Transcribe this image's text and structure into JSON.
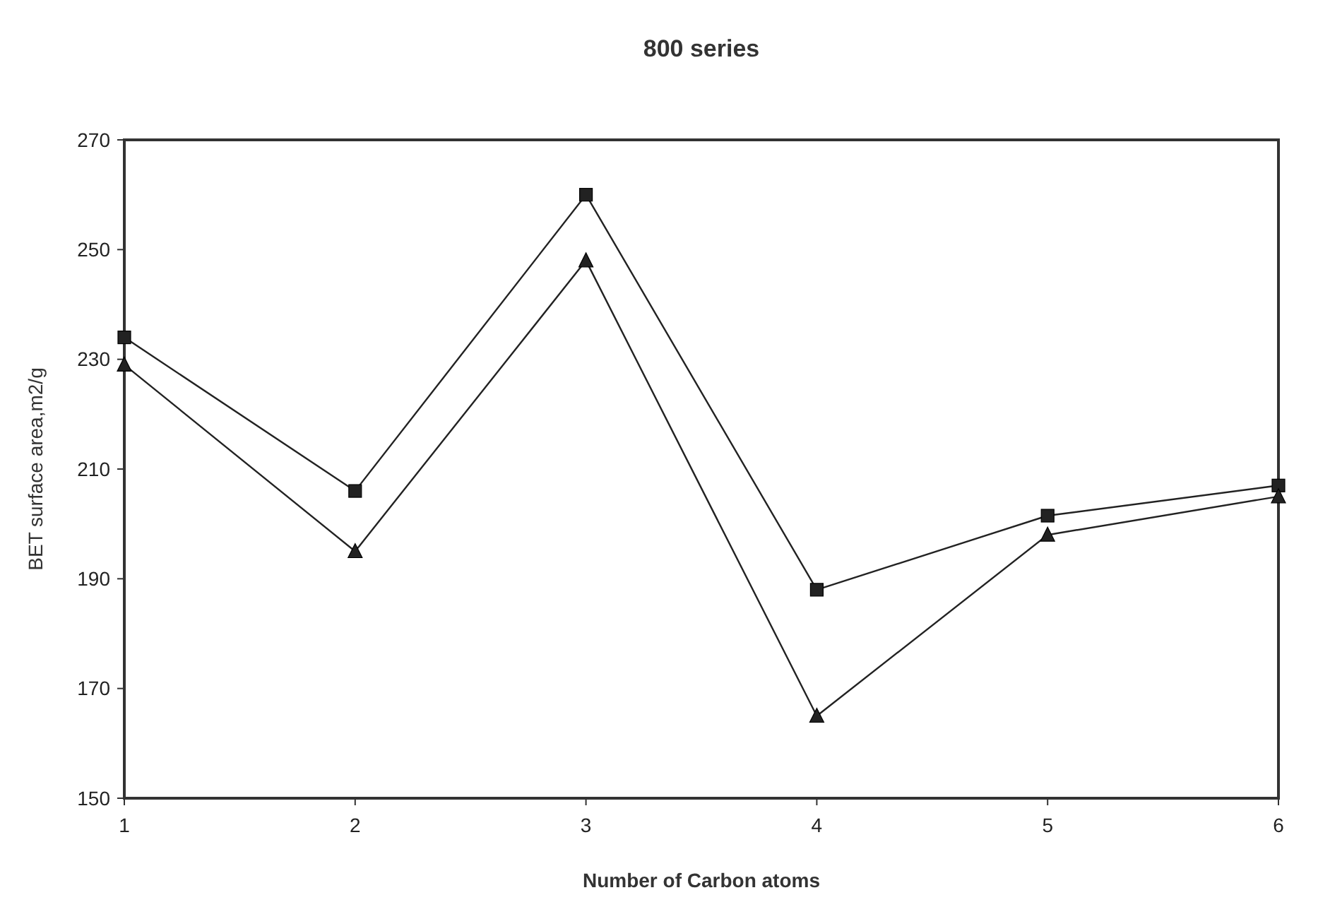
{
  "chart_data": {
    "type": "line",
    "title": "800 series",
    "xlabel": "Number of Carbon atoms",
    "ylabel": "BET surface area,m2/g",
    "x": [
      1,
      2,
      3,
      4,
      5,
      6
    ],
    "series": [
      {
        "color": "#222222",
        "marker": "square",
        "values": [
          234,
          206,
          260,
          188,
          201.5,
          207
        ]
      },
      {
        "color": "#222222",
        "marker": "triangle",
        "values": [
          229,
          195,
          248,
          165,
          198,
          205
        ]
      }
    ],
    "xlim": [
      1,
      6
    ],
    "xticks": [
      1,
      2,
      3,
      4,
      5,
      6
    ],
    "ylim": [
      150,
      270
    ],
    "yticks": [
      150,
      170,
      190,
      210,
      230,
      250,
      270
    ],
    "grid": false
  }
}
